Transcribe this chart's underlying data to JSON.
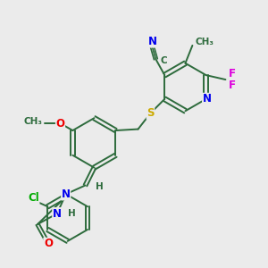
{
  "bg_color": "#ebebeb",
  "bond_color": "#2d6b3c",
  "atom_colors": {
    "N": "#0000ee",
    "O": "#ee0000",
    "S": "#ccaa00",
    "Cl": "#00aa00",
    "F": "#dd00dd",
    "C": "#2d6b3c",
    "H": "#2d6b3c"
  },
  "figsize": [
    3.0,
    3.0
  ],
  "dpi": 100
}
